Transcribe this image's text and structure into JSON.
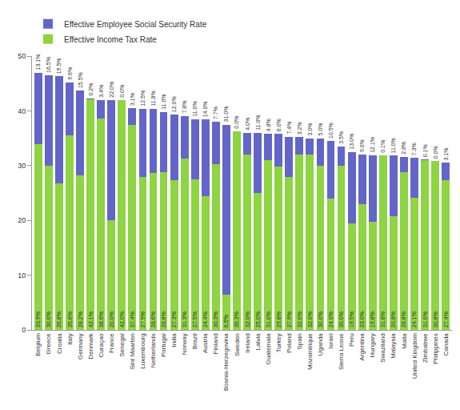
{
  "chart_data": {
    "type": "bar",
    "stacked": true,
    "data_labels": true,
    "legend": "top left",
    "grid": false,
    "ylim": [
      0,
      50
    ],
    "yticks": [
      0,
      10,
      20,
      30,
      40,
      50
    ],
    "categories": [
      "Belgium",
      "Greece",
      "Croatia",
      "Italy",
      "Germany",
      "Denmark",
      "Curaçao",
      "France",
      "Senegal",
      "Sint Maarten",
      "Luxembourg",
      "Netherlands",
      "Portugal",
      "India",
      "Norway",
      "Brazil",
      "Austria",
      "Finland",
      "Bosnia-Herzegovina",
      "Sweden",
      "Ireland",
      "Latvia",
      "Guatemala",
      "Turkey",
      "Poland",
      "Spain",
      "Mozambique",
      "Uganda",
      "Israel",
      "Sierra Leone",
      "Peru",
      "Argentina",
      "Hungary",
      "Swaziland",
      "Malaysia",
      "Malta",
      "United Kingdom",
      "Zimbabwe",
      "Philippines",
      "Canada"
    ],
    "series": [
      {
        "name": "Effective Employee Social Security Rate",
        "color": "#6366c8",
        "values": [
          13.1,
          16.5,
          19.5,
          9.6,
          15.5,
          0.2,
          3.4,
          22.0,
          0.0,
          3.1,
          12.5,
          11.8,
          11.0,
          12.0,
          7.8,
          11.0,
          14.0,
          7.7,
          31.0,
          0.0,
          4.0,
          11.0,
          4.8,
          6.0,
          7.4,
          3.2,
          3.0,
          5.0,
          10.5,
          3.5,
          13.0,
          9.0,
          12.1,
          0.1,
          11.0,
          2.8,
          7.3,
          0.1,
          0.0,
          3.1
        ],
        "value_labels": [
          "13.1%",
          "16.5%",
          "19.5%",
          "9.6%",
          "15.5%",
          "0.2%",
          "3.4%",
          "22.0%",
          "0.0%",
          "3.1%",
          "12.5%",
          "11.8%",
          "11.0%",
          "12.0%",
          "7.8%",
          "11.0%",
          "14.0%",
          "7.7%",
          "31.0%",
          "0.0%",
          "4.0%",
          "11.0%",
          "4.8%",
          "6.0%",
          "7.4%",
          "3.2%",
          "3.0%",
          "5.0%",
          "10.5%",
          "3.5%",
          "13.0%",
          "9.0%",
          "12.1%",
          "0.1%",
          "11.0%",
          "2.8%",
          "7.3%",
          "0.1%",
          "0.0%",
          "3.1%"
        ]
      },
      {
        "name": "Effective Income Tax Rate",
        "color": "#8ed443",
        "values": [
          33.9,
          30.0,
          26.8,
          35.6,
          28.2,
          42.1,
          38.6,
          20.0,
          42.0,
          37.4,
          27.9,
          28.6,
          28.8,
          27.3,
          31.3,
          27.5,
          24.4,
          30.3,
          6.5,
          36.3,
          32.0,
          25.0,
          31.0,
          29.8,
          27.9,
          32.0,
          32.0,
          30.0,
          24.0,
          30.0,
          19.5,
          23.0,
          19.8,
          31.8,
          20.8,
          28.8,
          24.1,
          31.0,
          30.8,
          27.4
        ],
        "value_labels": [
          "33.9%",
          "30.0%",
          "26.8%",
          "35.6%",
          "28.2%",
          "42.1%",
          "38.6%",
          "20.0%",
          "42.0%",
          "37.4%",
          "27.9%",
          "28.6%",
          "28.8%",
          "27.3%",
          "31.3%",
          "27.5%",
          "24.4%",
          "30.3%",
          "6.5%",
          "36.3%",
          "32.0%",
          "25.0%",
          "31.0%",
          "29.8%",
          "27.9%",
          "32.0%",
          "32.0%",
          "30.0%",
          "24.0%",
          "30.0%",
          "19.5%",
          "23.0%",
          "19.8%",
          "31.8%",
          "20.8%",
          "28.8%",
          "24.1%",
          "31.0%",
          "30.8%",
          "27.4%"
        ]
      }
    ]
  }
}
